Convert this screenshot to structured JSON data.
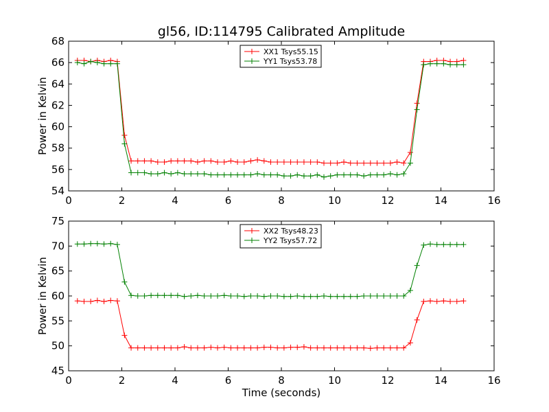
{
  "chart_data": [
    {
      "type": "line",
      "title": "gl56, ID:114795 Calibrated Amplitude",
      "xlabel": "",
      "ylabel": "Power in Kelvin",
      "xlim": [
        0,
        16
      ],
      "ylim": [
        54,
        68
      ],
      "xticks": [
        0,
        2,
        4,
        6,
        8,
        10,
        12,
        14,
        16
      ],
      "yticks": [
        54,
        56,
        58,
        60,
        62,
        64,
        66,
        68
      ],
      "grid": false,
      "legend_position": "top-center",
      "x": [
        0.33,
        0.58,
        0.83,
        1.08,
        1.33,
        1.58,
        1.83,
        2.1,
        2.35,
        2.6,
        2.85,
        3.1,
        3.35,
        3.6,
        3.85,
        4.1,
        4.35,
        4.6,
        4.85,
        5.1,
        5.35,
        5.6,
        5.85,
        6.1,
        6.35,
        6.6,
        6.85,
        7.1,
        7.35,
        7.6,
        7.85,
        8.1,
        8.35,
        8.6,
        8.85,
        9.1,
        9.35,
        9.6,
        9.85,
        10.1,
        10.35,
        10.6,
        10.85,
        11.1,
        11.35,
        11.6,
        11.85,
        12.1,
        12.35,
        12.6,
        12.85,
        13.1,
        13.35,
        13.6,
        13.85,
        14.1,
        14.35,
        14.6,
        14.85
      ],
      "series": [
        {
          "name": "XX1 Tsys55.15",
          "color": "#ff0000",
          "values": [
            66.2,
            66.2,
            66.1,
            66.2,
            66.1,
            66.2,
            66.1,
            59.2,
            56.8,
            56.8,
            56.8,
            56.8,
            56.7,
            56.7,
            56.8,
            56.8,
            56.8,
            56.8,
            56.7,
            56.8,
            56.8,
            56.7,
            56.7,
            56.8,
            56.7,
            56.7,
            56.8,
            56.9,
            56.8,
            56.7,
            56.7,
            56.7,
            56.7,
            56.7,
            56.7,
            56.7,
            56.7,
            56.6,
            56.6,
            56.6,
            56.7,
            56.6,
            56.6,
            56.6,
            56.6,
            56.6,
            56.6,
            56.6,
            56.7,
            56.6,
            57.6,
            62.2,
            66.1,
            66.1,
            66.2,
            66.2,
            66.1,
            66.1,
            66.2
          ]
        },
        {
          "name": "YY1 Tsys53.78",
          "color": "#008000",
          "values": [
            66.0,
            65.9,
            66.1,
            66.0,
            65.9,
            65.9,
            65.9,
            58.4,
            55.7,
            55.7,
            55.7,
            55.6,
            55.6,
            55.7,
            55.6,
            55.7,
            55.6,
            55.6,
            55.6,
            55.6,
            55.5,
            55.5,
            55.5,
            55.5,
            55.5,
            55.5,
            55.5,
            55.6,
            55.5,
            55.5,
            55.5,
            55.4,
            55.4,
            55.5,
            55.4,
            55.4,
            55.5,
            55.3,
            55.4,
            55.5,
            55.5,
            55.5,
            55.5,
            55.4,
            55.5,
            55.5,
            55.5,
            55.6,
            55.5,
            55.6,
            56.6,
            61.6,
            65.8,
            65.9,
            65.9,
            65.9,
            65.8,
            65.8,
            65.8
          ]
        }
      ]
    },
    {
      "type": "line",
      "title": "",
      "xlabel": "Time (seconds)",
      "ylabel": "Power in Kelvin",
      "xlim": [
        0,
        16
      ],
      "ylim": [
        45,
        75
      ],
      "xticks": [
        0,
        2,
        4,
        6,
        8,
        10,
        12,
        14,
        16
      ],
      "yticks": [
        45,
        50,
        55,
        60,
        65,
        70,
        75
      ],
      "grid": false,
      "legend_position": "top-center",
      "x": [
        0.33,
        0.58,
        0.83,
        1.08,
        1.33,
        1.58,
        1.83,
        2.1,
        2.35,
        2.6,
        2.85,
        3.1,
        3.35,
        3.6,
        3.85,
        4.1,
        4.35,
        4.6,
        4.85,
        5.1,
        5.35,
        5.6,
        5.85,
        6.1,
        6.35,
        6.6,
        6.85,
        7.1,
        7.35,
        7.6,
        7.85,
        8.1,
        8.35,
        8.6,
        8.85,
        9.1,
        9.35,
        9.6,
        9.85,
        10.1,
        10.35,
        10.6,
        10.85,
        11.1,
        11.35,
        11.6,
        11.85,
        12.1,
        12.35,
        12.6,
        12.85,
        13.1,
        13.35,
        13.6,
        13.85,
        14.1,
        14.35,
        14.6,
        14.85
      ],
      "series": [
        {
          "name": "XX2 Tsys48.23",
          "color": "#ff0000",
          "values": [
            59.0,
            58.9,
            58.9,
            59.1,
            58.9,
            59.1,
            59.0,
            52.1,
            49.6,
            49.6,
            49.6,
            49.6,
            49.6,
            49.6,
            49.6,
            49.6,
            49.8,
            49.6,
            49.6,
            49.6,
            49.7,
            49.6,
            49.7,
            49.6,
            49.6,
            49.6,
            49.6,
            49.6,
            49.7,
            49.7,
            49.6,
            49.6,
            49.7,
            49.7,
            49.8,
            49.6,
            49.6,
            49.6,
            49.6,
            49.6,
            49.6,
            49.6,
            49.6,
            49.6,
            49.5,
            49.6,
            49.6,
            49.6,
            49.6,
            49.6,
            50.6,
            55.2,
            58.9,
            59.0,
            58.9,
            59.0,
            58.9,
            58.9,
            59.0
          ]
        },
        {
          "name": "YY2 Tsys57.72",
          "color": "#008000",
          "values": [
            70.4,
            70.4,
            70.5,
            70.5,
            70.4,
            70.5,
            70.3,
            62.8,
            60.1,
            60.0,
            60.0,
            60.1,
            60.1,
            60.1,
            60.1,
            60.1,
            59.9,
            60.0,
            60.1,
            60.0,
            60.0,
            60.0,
            60.1,
            60.0,
            60.0,
            59.9,
            60.0,
            60.0,
            59.9,
            60.0,
            60.0,
            59.9,
            59.9,
            60.0,
            59.9,
            59.9,
            59.9,
            60.0,
            59.9,
            59.9,
            59.9,
            59.9,
            59.9,
            60.0,
            60.0,
            60.0,
            60.0,
            60.0,
            60.0,
            60.0,
            61.1,
            66.1,
            70.2,
            70.4,
            70.3,
            70.3,
            70.3,
            70.3,
            70.3
          ]
        }
      ]
    }
  ]
}
